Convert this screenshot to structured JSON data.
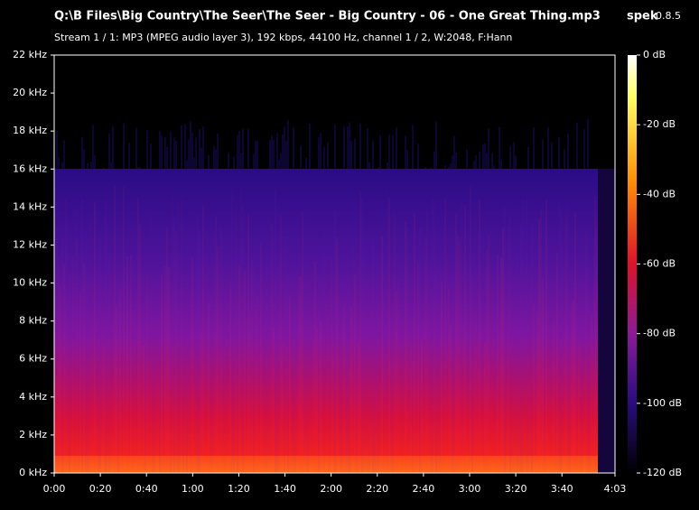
{
  "chart_data": {
    "type": "spectrogram",
    "title": "Q:\\B Files\\Big Country\\The Seer\\The Seer - Big Country - 06 - One Great Thing.mp3",
    "app": "spek",
    "version": "0.8.5",
    "subtitle": "Stream 1 / 1: MP3 (MPEG audio layer 3), 192 kbps, 44100 Hz, channel 1 / 2, W:2048, F:Hann",
    "xlim": [
      0,
      243
    ],
    "xticks": [
      {
        "value": 0,
        "label": "0:00"
      },
      {
        "value": 20,
        "label": "0:20"
      },
      {
        "value": 40,
        "label": "0:40"
      },
      {
        "value": 60,
        "label": "1:00"
      },
      {
        "value": 80,
        "label": "1:20"
      },
      {
        "value": 100,
        "label": "1:40"
      },
      {
        "value": 120,
        "label": "2:00"
      },
      {
        "value": 140,
        "label": "2:20"
      },
      {
        "value": 160,
        "label": "2:40"
      },
      {
        "value": 180,
        "label": "3:00"
      },
      {
        "value": 200,
        "label": "3:20"
      },
      {
        "value": 220,
        "label": "3:40"
      },
      {
        "value": 243,
        "label": "4:03"
      }
    ],
    "ylim": [
      0,
      22
    ],
    "yticks": [
      {
        "value": 0,
        "label": "0 kHz"
      },
      {
        "value": 2,
        "label": "2 kHz"
      },
      {
        "value": 4,
        "label": "4 kHz"
      },
      {
        "value": 6,
        "label": "6 kHz"
      },
      {
        "value": 8,
        "label": "8 kHz"
      },
      {
        "value": 10,
        "label": "10 kHz"
      },
      {
        "value": 12,
        "label": "12 kHz"
      },
      {
        "value": 14,
        "label": "14 kHz"
      },
      {
        "value": 16,
        "label": "16 kHz"
      },
      {
        "value": 18,
        "label": "18 kHz"
      },
      {
        "value": 20,
        "label": "20 kHz"
      },
      {
        "value": 22,
        "label": "22 kHz"
      }
    ],
    "zlim": [
      -120,
      0
    ],
    "zticks": [
      {
        "value": 0,
        "label": "0 dB"
      },
      {
        "value": -20,
        "label": "-20 dB"
      },
      {
        "value": -40,
        "label": "-40 dB"
      },
      {
        "value": -60,
        "label": "-60 dB"
      },
      {
        "value": -80,
        "label": "-80 dB"
      },
      {
        "value": -100,
        "label": "-100 dB"
      },
      {
        "value": -120,
        "label": "-120 dB"
      }
    ]
  }
}
